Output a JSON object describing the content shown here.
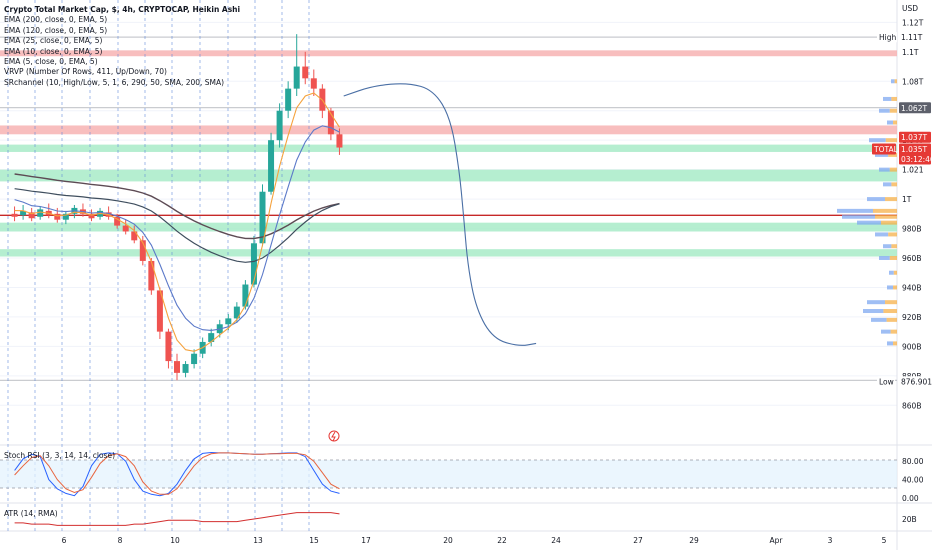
{
  "legend": {
    "title": "Crypto Total Market Cap, $, 4h, CRYPTOCAP, Heikin Ashi",
    "lines": [
      "EMA (200, close, 0, EMA, 5)",
      "EMA (120, close, 0, EMA, 5)",
      "EMA (25, close, 0, EMA, 5)",
      "EMA (10, close, 0, EMA, 5)",
      "EMA (5, close, 0, EMA, 5)",
      "VRVP (Number Of Rows, 411, Up/Down, 70)",
      "SRchannel (10, High/Low, 5, 1, 6, 290, 50, SMA, 200, SMA)"
    ]
  },
  "price_axis": {
    "currency": "USD",
    "ticks": [
      "1.12T",
      "1.11T",
      "1.1T",
      "1.08T",
      "1.06T",
      "1.04T",
      "1.021",
      "1T",
      "980B",
      "960B",
      "940B",
      "920B",
      "900B",
      "880B",
      "860B"
    ],
    "badges": {
      "high_label": "High",
      "high_value": "1.11T",
      "last_value": "1.062T",
      "ema_value": "1.037T",
      "symbol_label": "TOTAL",
      "price_value": "1.035T",
      "countdown": "03:12:46",
      "low_label": "Low",
      "low_value": "876.901B"
    }
  },
  "stoch_pane": {
    "label": "Stoch RSI (3, 3, 14, 14, close)",
    "ticks": [
      "80.00",
      "40.00",
      "0.00"
    ]
  },
  "atr_pane": {
    "label": "ATR (14, RMA)",
    "ticks": [
      "20B"
    ]
  },
  "time_axis": {
    "labels": [
      "6",
      "8",
      "10",
      "13",
      "15",
      "17",
      "20",
      "22",
      "24",
      "27",
      "29",
      "Apr",
      "3",
      "5"
    ]
  },
  "colors": {
    "up": "#26a69a",
    "down": "#ef5350",
    "sr_red": "#f7b3b3",
    "sr_green": "#a8ebc8",
    "ema200": "#5d4b54",
    "ema120": "#3f4e5e",
    "ema25": "#5b79c9",
    "ema10": "#f5a23d",
    "stoch_k": "#2962ff",
    "stoch_d": "#e8653f",
    "atr": "#d32f2f",
    "hline": "#c62828"
  },
  "chart_data": {
    "type": "candlestick",
    "title": "Crypto Total Market Cap, $, 4h, CRYPTOCAP, Heikin Ashi",
    "ylabel": "USD",
    "y_range_usd_billions": [
      850,
      1125
    ],
    "series": [
      {
        "name": "Crypto Total Market Cap (Heikin Ashi)",
        "points_usd_billions": [
          [
            1.0,
            990,
            995,
            985,
            988
          ],
          [
            2.0,
            989,
            996,
            986,
            992
          ],
          [
            3.0,
            991,
            994,
            985,
            987
          ],
          [
            4.0,
            988,
            995,
            986,
            993
          ],
          [
            5.0,
            992,
            997,
            987,
            989
          ],
          [
            6.0,
            990,
            994,
            984,
            986
          ],
          [
            7.0,
            986,
            992,
            983,
            990
          ],
          [
            8.0,
            990,
            996,
            987,
            994
          ],
          [
            9.0,
            993,
            997,
            988,
            990
          ],
          [
            10.0,
            990,
            993,
            985,
            987
          ],
          [
            11.0,
            988,
            994,
            986,
            992
          ],
          [
            12.0,
            991,
            995,
            986,
            988
          ],
          [
            13.0,
            988,
            990,
            980,
            982
          ],
          [
            14.0,
            982,
            986,
            976,
            978
          ],
          [
            15.0,
            978,
            982,
            970,
            972
          ],
          [
            16.0,
            972,
            975,
            955,
            958
          ],
          [
            17.0,
            958,
            960,
            935,
            938
          ],
          [
            18.0,
            938,
            940,
            905,
            910
          ],
          [
            19.0,
            910,
            912,
            885,
            890
          ],
          [
            20.0,
            890,
            895,
            877,
            882
          ],
          [
            21.0,
            882,
            890,
            879,
            888
          ],
          [
            22.0,
            888,
            898,
            885,
            895
          ],
          [
            23.0,
            895,
            906,
            892,
            903
          ],
          [
            24.0,
            903,
            912,
            900,
            909
          ],
          [
            25.0,
            909,
            918,
            906,
            915
          ],
          [
            26.0,
            915,
            922,
            911,
            919
          ],
          [
            27.0,
            919,
            930,
            916,
            927
          ],
          [
            28.0,
            927,
            945,
            925,
            942
          ],
          [
            29.0,
            942,
            975,
            940,
            970
          ],
          [
            30.0,
            970,
            1010,
            968,
            1005
          ],
          [
            31.0,
            1005,
            1045,
            1003,
            1040
          ],
          [
            32.0,
            1040,
            1065,
            1035,
            1060
          ],
          [
            33.0,
            1060,
            1080,
            1055,
            1075
          ],
          [
            34.0,
            1075,
            1112,
            1070,
            1090
          ],
          [
            35.0,
            1090,
            1100,
            1078,
            1082
          ],
          [
            36.0,
            1082,
            1088,
            1070,
            1075
          ],
          [
            37.0,
            1075,
            1078,
            1055,
            1060
          ],
          [
            38.0,
            1060,
            1062,
            1040,
            1044
          ],
          [
            39.0,
            1044,
            1048,
            1030,
            1035
          ]
        ]
      },
      {
        "name": "Projected path",
        "points_usd_billions": [
          [
            39.5,
            1070
          ],
          [
            43,
            1077
          ],
          [
            47,
            1079
          ],
          [
            50,
            1074
          ],
          [
            52,
            1055
          ],
          [
            53,
            1020
          ],
          [
            53.5,
            990
          ],
          [
            54,
            955
          ],
          [
            55,
            925
          ],
          [
            57,
            905
          ],
          [
            60,
            900
          ],
          [
            62,
            902
          ]
        ]
      }
    ],
    "sr_zones_usd_billions": {
      "resistance": [
        [
          1101,
          1097
        ],
        [
          1050,
          1044
        ]
      ],
      "support": [
        [
          1037,
          1032
        ],
        [
          1020,
          1012
        ],
        [
          984,
          978
        ],
        [
          966,
          961
        ]
      ]
    },
    "horizontal_line_usd_billions": 989,
    "x_labels": [
      "6",
      "8",
      "10",
      "13",
      "15",
      "17",
      "20",
      "22",
      "24",
      "27",
      "29",
      "Apr",
      "3",
      "5"
    ],
    "indicators": {
      "stoch_rsi": {
        "ylim": [
          0,
          100
        ],
        "bands": [
          20,
          80
        ],
        "k_last": 10,
        "d_last": 20
      },
      "atr": {
        "label": "ATR (14, RMA)"
      }
    }
  }
}
